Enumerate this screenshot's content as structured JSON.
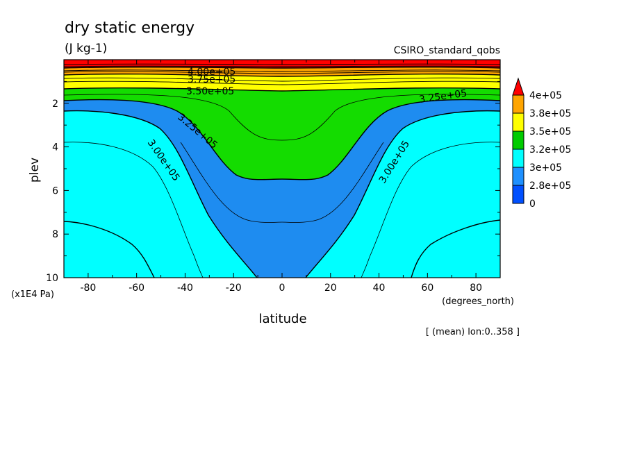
{
  "chart_data": {
    "type": "contour",
    "title": "dry static energy",
    "subtitle": "(J kg-1)",
    "dataset": "CSIRO_standard_qobs",
    "xlabel": "latitude",
    "xunits": "(degrees_north)",
    "ylabel": "plev",
    "yunits": "(x1E4 Pa)",
    "footnote": "[ (mean) lon:0..358 ]",
    "xlim": [
      -90,
      90
    ],
    "ylim": [
      10,
      0
    ],
    "x_ticks": [
      -80,
      -60,
      -40,
      -20,
      0,
      20,
      40,
      60,
      80
    ],
    "x_tick_labels": [
      "-80",
      "-60",
      "-40",
      "-20",
      "0",
      "20",
      "40",
      "60",
      "80"
    ],
    "y_ticks": [
      2,
      4,
      6,
      8,
      10
    ],
    "y_tick_labels": [
      "2",
      "4",
      "6",
      "8",
      "10"
    ],
    "contour_levels": [
      275000.0,
      300000.0,
      325000.0,
      350000.0,
      375000.0,
      400000.0
    ],
    "contour_labels": [
      {
        "text": "4.00e+05",
        "x": -7,
        "y": 0.5
      },
      {
        "text": "3.75e+05",
        "x": -7,
        "y": 0.85
      },
      {
        "text": "3.50e+05",
        "x": -7,
        "y": 1.45
      },
      {
        "text": "3.25e+05",
        "x": -37,
        "y": 3.1
      },
      {
        "text": "3.25e+05",
        "x": 72,
        "y": 1.7
      },
      {
        "text": "3.00e+05",
        "x": -52,
        "y": 4.6
      },
      {
        "text": "3.00e+05",
        "x": 54,
        "y": 4.6
      }
    ],
    "colorbar": {
      "labels": [
        "4e+05",
        "3.8e+05",
        "3.5e+05",
        "3.2e+05",
        "3e+05",
        "2.8e+05",
        "0"
      ],
      "colors": [
        "#ff0000",
        "#ffa500",
        "#ffff00",
        "#00cc00",
        "#00ffff",
        "#1e90ff",
        "#0050ff"
      ]
    },
    "fill_colors": {
      "deep_blue": "#1f56f0",
      "mid_blue": "#1e8cf0",
      "cyan": "#00ffff",
      "green": "#14dc00",
      "yellow": "#ffff00",
      "orange": "#ffa500",
      "red": "#ff0000"
    }
  }
}
